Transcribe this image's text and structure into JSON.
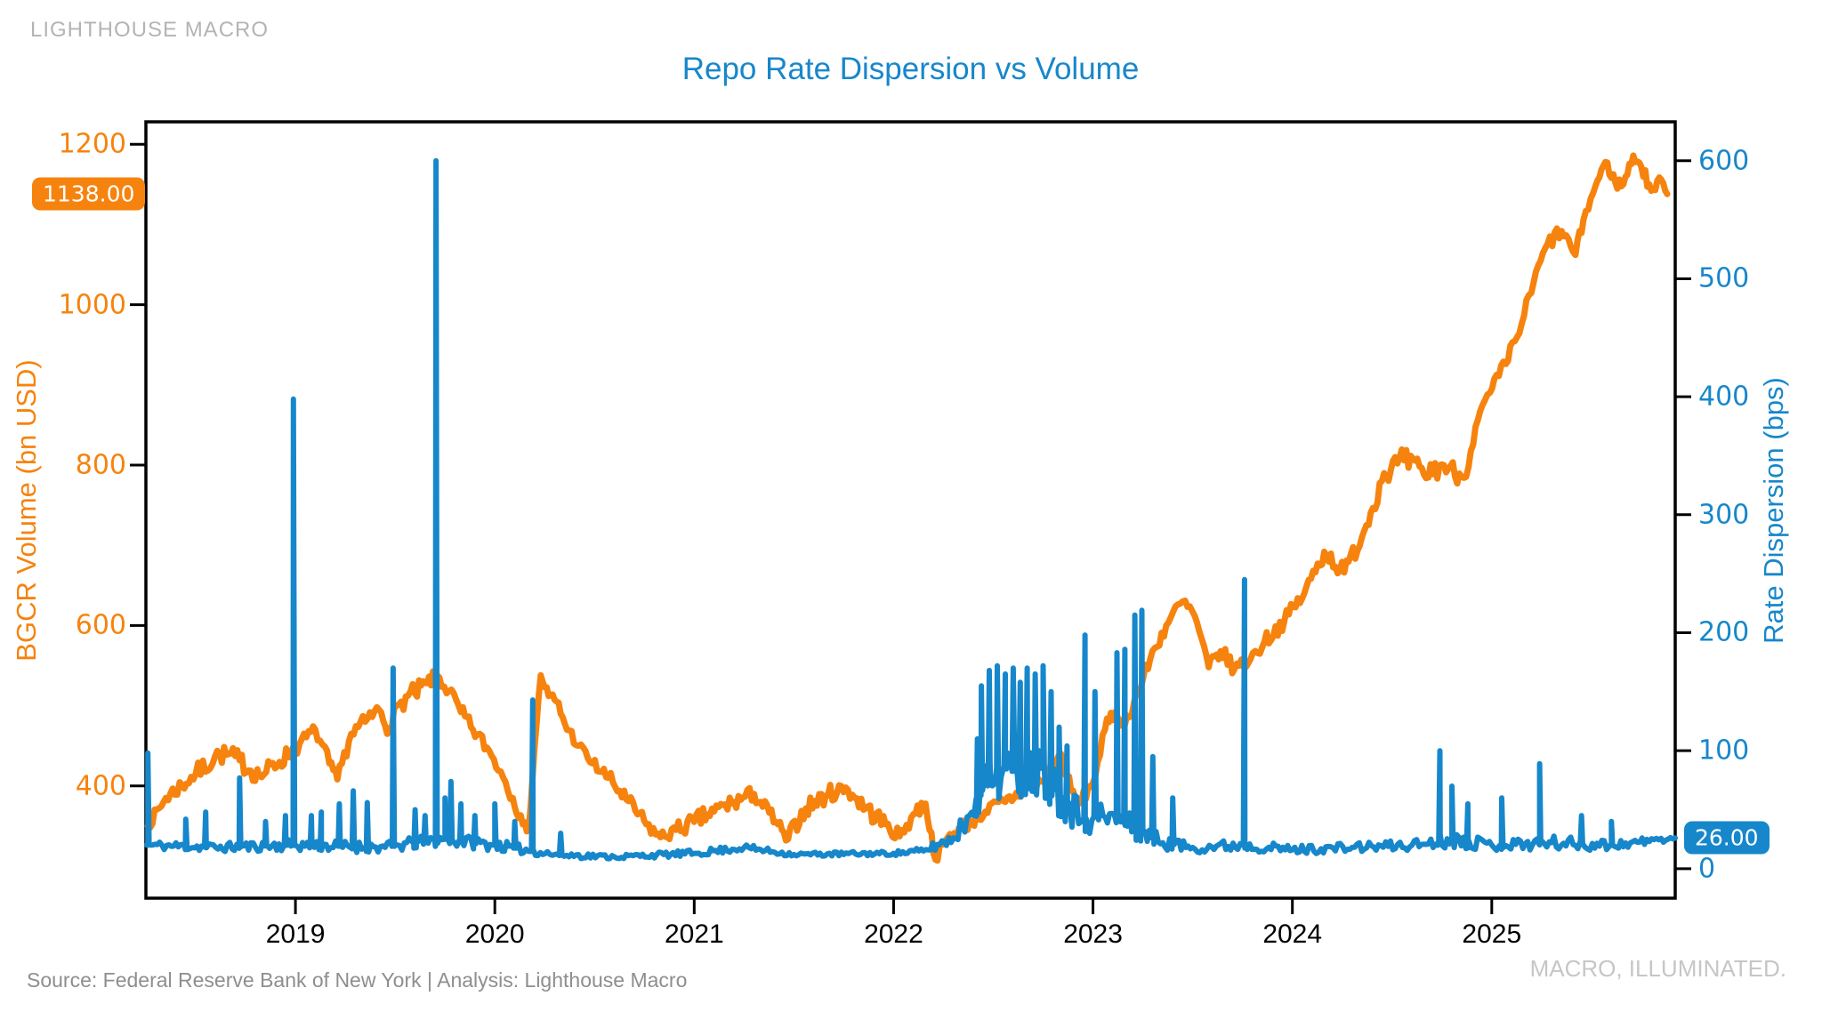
{
  "branding": {
    "top_left": "LIGHTHOUSE MACRO",
    "bottom_right": "MACRO, ILLUMINATED.",
    "source_line": "Source: Federal Reserve Bank of New York | Analysis: Lighthouse Macro"
  },
  "chart_data": {
    "type": "line",
    "title": "Repo Rate Dispersion vs Volume",
    "grid": false,
    "legend": "none",
    "x_range": [
      2018.25,
      2025.92
    ],
    "x_ticks": [
      2019,
      2020,
      2021,
      2022,
      2023,
      2024,
      2025
    ],
    "left_axis": {
      "label": "BGCR Volume (bn USD)",
      "color": "#f6830e",
      "ticks": [
        400,
        600,
        800,
        1000,
        1200
      ],
      "range": [
        260,
        1228
      ],
      "last_value_label": "1138.00"
    },
    "right_axis": {
      "label": "Rate Dispersion (bps)",
      "color": "#1787cb",
      "ticks": [
        0,
        100,
        200,
        300,
        400,
        500,
        600
      ],
      "range": [
        -25,
        633
      ],
      "last_value_label": "26.00"
    },
    "series": [
      {
        "name": "BGCR Volume",
        "axis": "left",
        "color": "#f6830e",
        "stroke_width": 7,
        "noise_seed": 7,
        "keyframes": [
          [
            2018.26,
            350,
            6
          ],
          [
            2018.35,
            385,
            10
          ],
          [
            2018.5,
            415,
            12
          ],
          [
            2018.62,
            440,
            12
          ],
          [
            2018.72,
            432,
            14
          ],
          [
            2018.82,
            412,
            12
          ],
          [
            2018.92,
            430,
            12
          ],
          [
            2019.02,
            452,
            10
          ],
          [
            2019.1,
            470,
            8
          ],
          [
            2019.17,
            428,
            10
          ],
          [
            2019.21,
            408,
            8
          ],
          [
            2019.28,
            465,
            10
          ],
          [
            2019.35,
            480,
            10
          ],
          [
            2019.42,
            495,
            12
          ],
          [
            2019.47,
            472,
            12
          ],
          [
            2019.53,
            505,
            12
          ],
          [
            2019.6,
            515,
            14
          ],
          [
            2019.66,
            528,
            10
          ],
          [
            2019.71,
            538,
            8
          ],
          [
            2019.77,
            518,
            12
          ],
          [
            2019.83,
            492,
            10
          ],
          [
            2019.89,
            470,
            10
          ],
          [
            2019.96,
            448,
            10
          ],
          [
            2020.03,
            418,
            8
          ],
          [
            2020.09,
            385,
            8
          ],
          [
            2020.14,
            352,
            6
          ],
          [
            2020.17,
            345,
            4
          ],
          [
            2020.2,
            450,
            6
          ],
          [
            2020.23,
            538,
            6
          ],
          [
            2020.27,
            512,
            8
          ],
          [
            2020.31,
            505,
            10
          ],
          [
            2020.35,
            478,
            8
          ],
          [
            2020.42,
            450,
            8
          ],
          [
            2020.49,
            428,
            8
          ],
          [
            2020.57,
            410,
            10
          ],
          [
            2020.66,
            383,
            10
          ],
          [
            2020.76,
            352,
            10
          ],
          [
            2020.83,
            336,
            8
          ],
          [
            2020.91,
            345,
            10
          ],
          [
            2021.0,
            355,
            12
          ],
          [
            2021.1,
            368,
            12
          ],
          [
            2021.2,
            380,
            12
          ],
          [
            2021.3,
            390,
            10
          ],
          [
            2021.42,
            352,
            10
          ],
          [
            2021.46,
            332,
            8
          ],
          [
            2021.56,
            372,
            12
          ],
          [
            2021.66,
            388,
            12
          ],
          [
            2021.76,
            398,
            10
          ],
          [
            2021.86,
            372,
            12
          ],
          [
            2021.96,
            352,
            12
          ],
          [
            2022.03,
            337,
            8
          ],
          [
            2022.1,
            365,
            12
          ],
          [
            2022.16,
            378,
            10
          ],
          [
            2022.21,
            308,
            6
          ],
          [
            2022.26,
            332,
            8
          ],
          [
            2022.36,
            352,
            10
          ],
          [
            2022.46,
            368,
            10
          ],
          [
            2022.56,
            380,
            10
          ],
          [
            2022.66,
            395,
            10
          ],
          [
            2022.76,
            408,
            10
          ],
          [
            2022.84,
            440,
            8
          ],
          [
            2022.89,
            394,
            10
          ],
          [
            2022.93,
            378,
            8
          ],
          [
            2023.0,
            404,
            8
          ],
          [
            2023.06,
            470,
            10
          ],
          [
            2023.11,
            492,
            8
          ],
          [
            2023.16,
            476,
            8
          ],
          [
            2023.23,
            520,
            10
          ],
          [
            2023.31,
            572,
            10
          ],
          [
            2023.39,
            610,
            10
          ],
          [
            2023.45,
            630,
            8
          ],
          [
            2023.51,
            612,
            10
          ],
          [
            2023.58,
            548,
            10
          ],
          [
            2023.64,
            568,
            10
          ],
          [
            2023.71,
            546,
            10
          ],
          [
            2023.79,
            558,
            10
          ],
          [
            2023.86,
            580,
            10
          ],
          [
            2023.96,
            606,
            10
          ],
          [
            2024.06,
            640,
            10
          ],
          [
            2024.16,
            692,
            12
          ],
          [
            2024.26,
            666,
            12
          ],
          [
            2024.36,
            718,
            12
          ],
          [
            2024.46,
            790,
            14
          ],
          [
            2024.56,
            806,
            16
          ],
          [
            2024.66,
            788,
            16
          ],
          [
            2024.76,
            800,
            14
          ],
          [
            2024.86,
            784,
            12
          ],
          [
            2024.93,
            856,
            10
          ],
          [
            2024.99,
            890,
            8
          ],
          [
            2025.07,
            926,
            10
          ],
          [
            2025.15,
            976,
            10
          ],
          [
            2025.21,
            1028,
            10
          ],
          [
            2025.28,
            1076,
            10
          ],
          [
            2025.35,
            1092,
            10
          ],
          [
            2025.42,
            1062,
            8
          ],
          [
            2025.46,
            1106,
            8
          ],
          [
            2025.52,
            1148,
            8
          ],
          [
            2025.57,
            1178,
            6
          ],
          [
            2025.62,
            1152,
            8
          ],
          [
            2025.66,
            1150,
            8
          ],
          [
            2025.71,
            1186,
            6
          ],
          [
            2025.75,
            1172,
            8
          ],
          [
            2025.8,
            1142,
            8
          ],
          [
            2025.85,
            1156,
            6
          ],
          [
            2025.88,
            1138,
            0
          ]
        ],
        "spikes": []
      },
      {
        "name": "Rate Dispersion",
        "axis": "right",
        "color": "#1787cb",
        "stroke_width": 6,
        "noise_seed": 11,
        "keyframes": [
          [
            2018.26,
            20,
            4
          ],
          [
            2018.6,
            18,
            4
          ],
          [
            2019.0,
            20,
            5
          ],
          [
            2019.45,
            18,
            5
          ],
          [
            2019.75,
            25,
            6
          ],
          [
            2020.0,
            20,
            5
          ],
          [
            2020.3,
            12,
            3
          ],
          [
            2020.6,
            10,
            2
          ],
          [
            2021.0,
            13,
            3
          ],
          [
            2021.25,
            18,
            3
          ],
          [
            2021.5,
            12,
            2
          ],
          [
            2022.0,
            13,
            2
          ],
          [
            2022.15,
            15,
            3
          ],
          [
            2022.3,
            26,
            7
          ],
          [
            2022.38,
            45,
            12
          ],
          [
            2022.45,
            70,
            18
          ],
          [
            2022.55,
            85,
            24
          ],
          [
            2022.65,
            80,
            24
          ],
          [
            2022.75,
            85,
            24
          ],
          [
            2022.85,
            60,
            20
          ],
          [
            2022.95,
            42,
            14
          ],
          [
            2023.05,
            45,
            14
          ],
          [
            2023.15,
            40,
            12
          ],
          [
            2023.25,
            30,
            10
          ],
          [
            2023.35,
            22,
            6
          ],
          [
            2023.5,
            18,
            5
          ],
          [
            2023.75,
            20,
            5
          ],
          [
            2024.0,
            16,
            4
          ],
          [
            2024.3,
            18,
            4
          ],
          [
            2024.6,
            20,
            5
          ],
          [
            2024.8,
            25,
            7
          ],
          [
            2025.0,
            20,
            5
          ],
          [
            2025.3,
            22,
            6
          ],
          [
            2025.6,
            20,
            5
          ],
          [
            2025.92,
            26,
            2
          ]
        ],
        "spikes": [
          [
            2018.26,
            98
          ],
          [
            2018.45,
            42
          ],
          [
            2018.55,
            48
          ],
          [
            2018.72,
            77
          ],
          [
            2018.85,
            40
          ],
          [
            2018.95,
            45
          ],
          [
            2018.99,
            398
          ],
          [
            2019.08,
            45
          ],
          [
            2019.13,
            48
          ],
          [
            2019.22,
            55
          ],
          [
            2019.29,
            66
          ],
          [
            2019.36,
            56
          ],
          [
            2019.49,
            170
          ],
          [
            2019.6,
            50
          ],
          [
            2019.65,
            45
          ],
          [
            2019.705,
            600
          ],
          [
            2019.75,
            60
          ],
          [
            2019.78,
            74
          ],
          [
            2019.83,
            55
          ],
          [
            2019.9,
            45
          ],
          [
            2020.0,
            55
          ],
          [
            2020.1,
            40
          ],
          [
            2020.19,
            143
          ],
          [
            2020.33,
            30
          ],
          [
            2022.42,
            110
          ],
          [
            2022.44,
            155
          ],
          [
            2022.48,
            168
          ],
          [
            2022.52,
            172
          ],
          [
            2022.56,
            165
          ],
          [
            2022.6,
            170
          ],
          [
            2022.635,
            158
          ],
          [
            2022.67,
            170
          ],
          [
            2022.71,
            165
          ],
          [
            2022.75,
            172
          ],
          [
            2022.79,
            150
          ],
          [
            2022.83,
            120
          ],
          [
            2022.87,
            104
          ],
          [
            2022.96,
            198
          ],
          [
            2023.01,
            150
          ],
          [
            2023.12,
            183
          ],
          [
            2023.16,
            186
          ],
          [
            2023.21,
            215
          ],
          [
            2023.245,
            219
          ],
          [
            2023.3,
            95
          ],
          [
            2023.4,
            60
          ],
          [
            2023.76,
            245
          ],
          [
            2024.74,
            100
          ],
          [
            2024.8,
            70
          ],
          [
            2024.88,
            55
          ],
          [
            2025.05,
            60
          ],
          [
            2025.24,
            89
          ],
          [
            2025.45,
            45
          ],
          [
            2025.6,
            40
          ]
        ]
      }
    ]
  }
}
